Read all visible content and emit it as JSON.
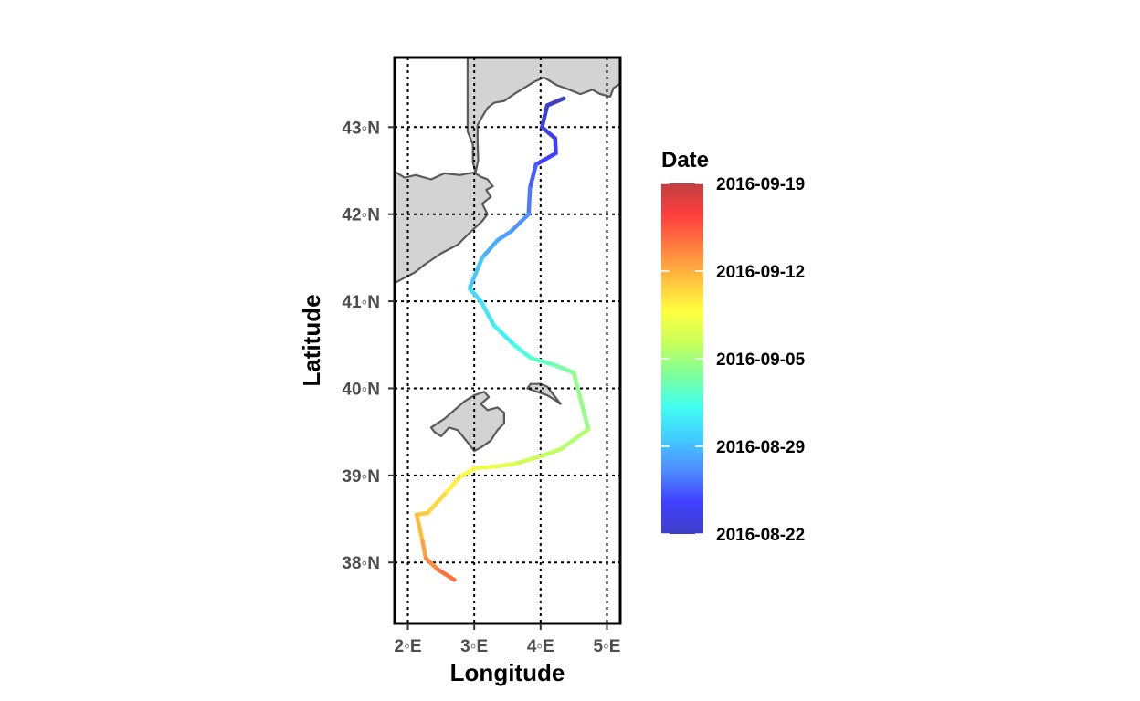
{
  "chart_data": {
    "type": "line",
    "xlabel": "Longitude",
    "ylabel": "Latitude",
    "xlim": [
      1.8,
      5.2
    ],
    "ylim": [
      37.3,
      43.8
    ],
    "x_ticks": [
      2,
      3,
      4,
      5
    ],
    "x_tick_labels": [
      "2◦E",
      "3◦E",
      "4◦E",
      "5◦E"
    ],
    "y_ticks": [
      38,
      39,
      40,
      41,
      42,
      43
    ],
    "y_tick_labels": [
      "38◦N",
      "39◦N",
      "40◦N",
      "41◦N",
      "42◦N",
      "43◦N"
    ],
    "grid": true,
    "legend": {
      "title": "Date",
      "placement": "right",
      "labels": [
        "2016-09-19",
        "2016-09-12",
        "2016-09-05",
        "2016-08-29",
        "2016-08-22"
      ],
      "colors": [
        "#3f3fc8",
        "#4040ff",
        "#4f8cff",
        "#42ccff",
        "#41fff0",
        "#7dff9a",
        "#c8ff5a",
        "#ffff3f",
        "#ffc040",
        "#ff7f3f",
        "#ff3f3f",
        "#bf4040"
      ]
    },
    "series": [
      {
        "x": [
          4.35,
          4.1,
          4.02,
          4.22,
          4.23,
          3.93,
          3.84,
          3.82,
          3.55,
          3.35,
          3.12,
          2.93,
          3.1,
          3.3,
          3.6,
          3.85,
          4.2,
          4.5,
          4.72,
          4.3,
          4.0,
          3.6,
          3.3,
          3.0,
          2.78,
          2.55,
          2.3,
          2.13,
          2.22,
          2.27,
          2.45,
          2.7
        ],
        "y": [
          43.33,
          43.25,
          43.0,
          42.87,
          42.7,
          42.57,
          42.3,
          42.0,
          41.8,
          41.7,
          41.5,
          41.15,
          41.0,
          40.72,
          40.5,
          40.35,
          40.27,
          40.18,
          39.53,
          39.3,
          39.22,
          39.13,
          39.1,
          39.08,
          38.98,
          38.78,
          38.57,
          38.55,
          38.25,
          38.05,
          37.92,
          37.8
        ],
        "dates": [
          "2016-08-22",
          "2016-08-22",
          "2016-08-23",
          "2016-08-24",
          "2016-08-24",
          "2016-08-25",
          "2016-08-26",
          "2016-08-27",
          "2016-08-28",
          "2016-08-28",
          "2016-08-29",
          "2016-08-30",
          "2016-08-31",
          "2016-08-31",
          "2016-09-01",
          "2016-09-02",
          "2016-09-03",
          "2016-09-04",
          "2016-09-05",
          "2016-09-06",
          "2016-09-06",
          "2016-09-07",
          "2016-09-08",
          "2016-09-08",
          "2016-09-09",
          "2016-09-10",
          "2016-09-11",
          "2016-09-11",
          "2016-09-12",
          "2016-09-13",
          "2016-09-14",
          "2016-09-15"
        ]
      }
    ],
    "land": {
      "fill": "#d3d3d3",
      "stroke": "#5a5a5a",
      "polygons": [
        [
          [
            1.78,
            42.5
          ],
          [
            1.95,
            42.42
          ],
          [
            2.12,
            42.45
          ],
          [
            2.35,
            42.4
          ],
          [
            2.55,
            42.47
          ],
          [
            2.78,
            42.45
          ],
          [
            3.0,
            42.48
          ],
          [
            3.1,
            42.43
          ],
          [
            3.2,
            42.4
          ],
          [
            3.28,
            42.32
          ],
          [
            3.18,
            42.28
          ],
          [
            3.25,
            42.2
          ],
          [
            3.12,
            42.12
          ],
          [
            3.2,
            42.0
          ],
          [
            3.12,
            41.92
          ],
          [
            2.95,
            41.8
          ],
          [
            2.75,
            41.65
          ],
          [
            2.5,
            41.55
          ],
          [
            2.25,
            41.42
          ],
          [
            2.1,
            41.33
          ],
          [
            1.9,
            41.25
          ],
          [
            1.78,
            41.2
          ],
          [
            1.78,
            42.5
          ]
        ],
        [
          [
            3.02,
            42.48
          ],
          [
            3.06,
            42.62
          ],
          [
            3.05,
            42.82
          ],
          [
            3.05,
            43.02
          ],
          [
            3.12,
            43.12
          ],
          [
            3.2,
            43.22
          ],
          [
            3.3,
            43.28
          ],
          [
            3.45,
            43.3
          ],
          [
            3.6,
            43.38
          ],
          [
            3.75,
            43.45
          ],
          [
            3.9,
            43.52
          ],
          [
            4.05,
            43.57
          ],
          [
            4.25,
            43.48
          ],
          [
            4.4,
            43.44
          ],
          [
            4.6,
            43.38
          ],
          [
            4.78,
            43.43
          ],
          [
            4.9,
            43.38
          ],
          [
            5.05,
            43.35
          ],
          [
            5.1,
            43.45
          ],
          [
            5.2,
            43.5
          ],
          [
            5.2,
            43.85
          ],
          [
            2.9,
            43.85
          ],
          [
            2.9,
            42.95
          ],
          [
            2.98,
            42.8
          ],
          [
            2.98,
            42.6
          ],
          [
            3.02,
            42.48
          ]
        ],
        [
          [
            2.35,
            39.55
          ],
          [
            2.45,
            39.6
          ],
          [
            2.55,
            39.65
          ],
          [
            2.7,
            39.75
          ],
          [
            2.85,
            39.85
          ],
          [
            3.0,
            39.92
          ],
          [
            3.15,
            39.96
          ],
          [
            3.22,
            39.9
          ],
          [
            3.1,
            39.82
          ],
          [
            3.2,
            39.75
          ],
          [
            3.35,
            39.78
          ],
          [
            3.45,
            39.72
          ],
          [
            3.45,
            39.6
          ],
          [
            3.35,
            39.52
          ],
          [
            3.25,
            39.4
          ],
          [
            3.1,
            39.32
          ],
          [
            3.0,
            39.28
          ],
          [
            2.9,
            39.38
          ],
          [
            2.75,
            39.52
          ],
          [
            2.62,
            39.55
          ],
          [
            2.5,
            39.45
          ],
          [
            2.4,
            39.5
          ],
          [
            2.35,
            39.55
          ]
        ],
        [
          [
            3.8,
            40.0
          ],
          [
            3.95,
            39.96
          ],
          [
            4.1,
            39.92
          ],
          [
            4.25,
            39.85
          ],
          [
            4.3,
            39.82
          ],
          [
            4.2,
            39.92
          ],
          [
            4.1,
            40.02
          ],
          [
            4.0,
            40.05
          ],
          [
            3.85,
            40.05
          ],
          [
            3.8,
            40.0
          ]
        ]
      ]
    }
  }
}
